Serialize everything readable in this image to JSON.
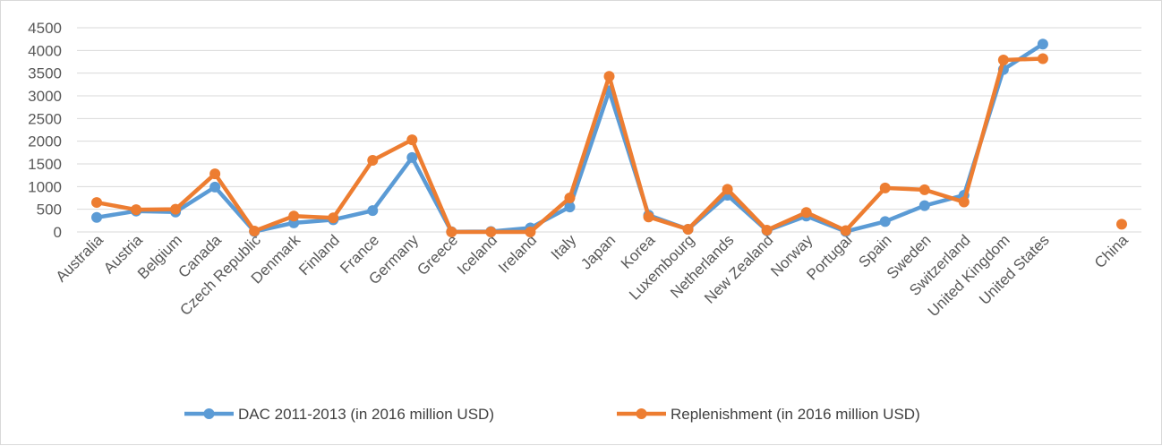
{
  "chart_data": {
    "type": "line",
    "title": "",
    "xlabel": "",
    "ylabel": "",
    "ylim": [
      0,
      4500
    ],
    "yticks": [
      0,
      500,
      1000,
      1500,
      2000,
      2500,
      3000,
      3500,
      4000,
      4500
    ],
    "grid": true,
    "legend_position": "bottom",
    "categories": [
      "Australia",
      "Austria",
      "Belgium",
      "Canada",
      "Czech Republic",
      "Denmark",
      "Finland",
      "France",
      "Germany",
      "Greece",
      "Iceland",
      "Ireland",
      "Italy",
      "Japan",
      "Korea",
      "Luxembourg",
      "Netherlands",
      "New Zealand",
      "Norway",
      "Portugal",
      "Spain",
      "Sweden",
      "Switzerland",
      "United Kingdom",
      "United States",
      "",
      "China"
    ],
    "series": [
      {
        "name": "DAC 2011-2013 (in 2016 million USD)",
        "color": "#5b9bd5",
        "values": [
          320,
          460,
          440,
          990,
          10,
          200,
          270,
          470,
          1640,
          5,
          10,
          90,
          550,
          3110,
          370,
          60,
          810,
          30,
          350,
          10,
          230,
          580,
          810,
          3580,
          4140,
          null,
          null
        ]
      },
      {
        "name": "Replenishment (in 2016 million USD)",
        "color": "#ed7d31",
        "values": [
          650,
          490,
          500,
          1280,
          20,
          350,
          310,
          1580,
          2030,
          0,
          0,
          0,
          750,
          3430,
          330,
          60,
          940,
          40,
          430,
          30,
          970,
          930,
          660,
          3790,
          3820,
          null,
          170
        ]
      }
    ]
  }
}
